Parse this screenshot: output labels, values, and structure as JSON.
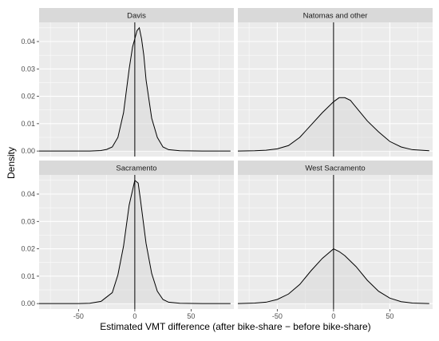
{
  "chart_data": {
    "type": "area",
    "title": "",
    "xlabel": "Estimated VMT difference (after bike-share − before bike-share)",
    "ylabel": "Density",
    "xlim": [
      -85,
      88
    ],
    "ylim": [
      -0.002,
      0.047
    ],
    "x_ticks": [
      -50,
      0,
      50
    ],
    "x_tick_labels": [
      "-50",
      "0",
      "50"
    ],
    "y_ticks": [
      0,
      0.01,
      0.02,
      0.03,
      0.04
    ],
    "y_tick_labels": [
      "0.00",
      "0.01",
      "0.02",
      "0.03",
      "0.04"
    ],
    "grid": true,
    "vline_x": 0,
    "colors": {
      "panel_bg": "#ebebeb",
      "grid": "#ffffff",
      "strip_bg": "#d9d9d9",
      "fill": "#d9d9d9",
      "line": "#000000"
    },
    "panels": [
      {
        "name": "Davis",
        "x": [
          -85,
          -40,
          -30,
          -25,
          -20,
          -15,
          -10,
          -5,
          -2,
          0,
          2,
          4,
          6,
          8,
          10,
          15,
          20,
          25,
          30,
          40,
          60,
          85
        ],
        "y": [
          0,
          0,
          0.0002,
          0.0006,
          0.0015,
          0.005,
          0.014,
          0.03,
          0.038,
          0.041,
          0.044,
          0.045,
          0.041,
          0.035,
          0.026,
          0.012,
          0.005,
          0.0015,
          0.0005,
          0.0001,
          0,
          0
        ]
      },
      {
        "name": "Natomas and other",
        "x": [
          -85,
          -70,
          -60,
          -50,
          -40,
          -30,
          -20,
          -10,
          0,
          5,
          10,
          15,
          20,
          30,
          40,
          50,
          60,
          70,
          85
        ],
        "y": [
          0,
          0.0001,
          0.0003,
          0.0008,
          0.002,
          0.005,
          0.0095,
          0.014,
          0.018,
          0.0195,
          0.0195,
          0.0185,
          0.016,
          0.011,
          0.007,
          0.0035,
          0.0015,
          0.0005,
          0.0001
        ]
      },
      {
        "name": "Sacramento",
        "x": [
          -85,
          -50,
          -40,
          -30,
          -20,
          -15,
          -10,
          -5,
          0,
          3,
          5,
          10,
          15,
          20,
          25,
          30,
          40,
          60,
          85
        ],
        "y": [
          0,
          0,
          0.0001,
          0.0008,
          0.004,
          0.0105,
          0.021,
          0.036,
          0.045,
          0.044,
          0.038,
          0.022,
          0.011,
          0.0045,
          0.0015,
          0.0005,
          0.0001,
          0,
          0
        ]
      },
      {
        "name": "West Sacramento",
        "x": [
          -85,
          -70,
          -60,
          -50,
          -40,
          -30,
          -20,
          -10,
          0,
          5,
          10,
          20,
          30,
          40,
          50,
          60,
          70,
          85
        ],
        "y": [
          0,
          0.0002,
          0.0005,
          0.0015,
          0.0035,
          0.007,
          0.012,
          0.0165,
          0.02,
          0.019,
          0.0175,
          0.0135,
          0.0085,
          0.0045,
          0.002,
          0.0007,
          0.0002,
          0
        ]
      }
    ]
  }
}
